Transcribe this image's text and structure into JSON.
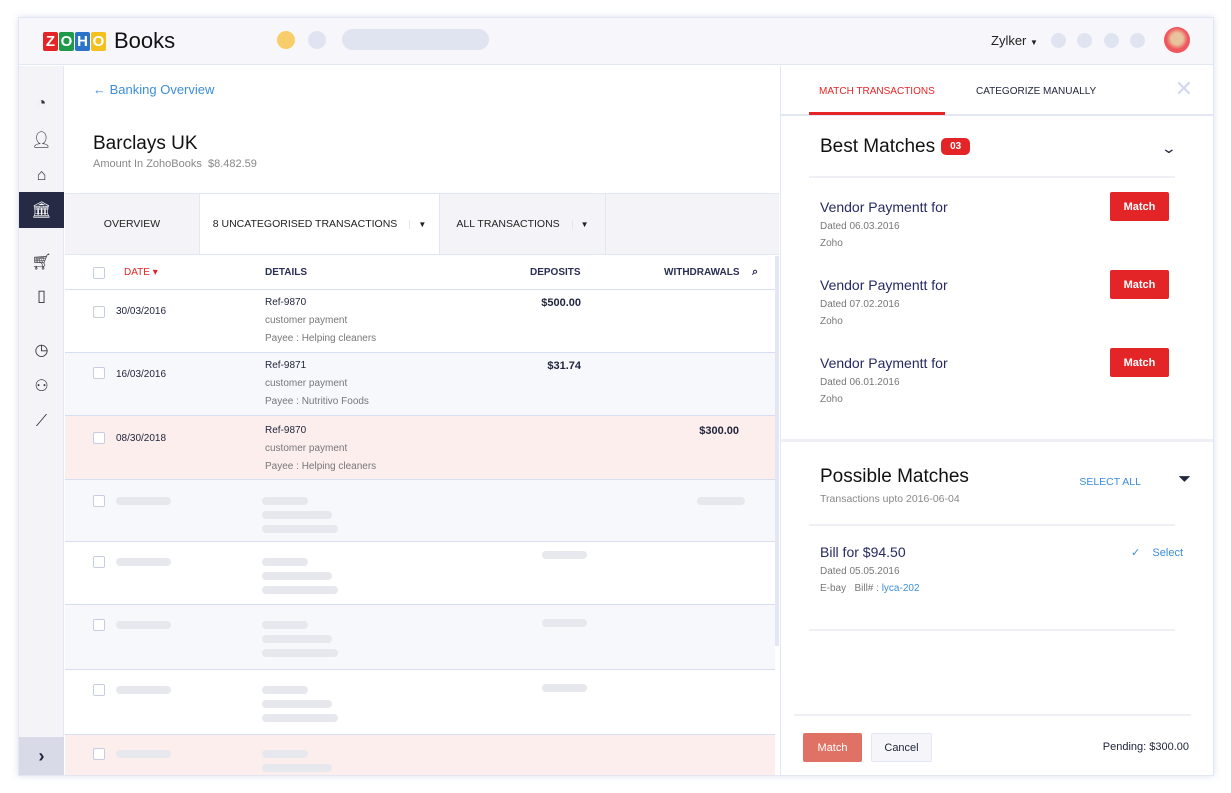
{
  "header": {
    "app_name": "Books",
    "logo_letters": [
      "Z",
      "O",
      "H",
      "O"
    ],
    "org": "Zylker"
  },
  "breadcrumb": "Banking Overview",
  "account": {
    "name": "Barclays UK",
    "amount_label": "Amount In ZohoBooks",
    "amount": "$8.482.59"
  },
  "tabs": [
    "OVERVIEW",
    "8 UNCATEGORISED TRANSACTIONS",
    "ALL TRANSACTIONS"
  ],
  "table": {
    "headers": {
      "date": "DATE",
      "details": "DETAILS",
      "deposits": "DEPOSITS",
      "withdrawals": "WITHDRAWALS"
    },
    "rows": [
      {
        "date": "30/03/2016",
        "ref": "Ref-9870",
        "desc": "customer payment",
        "payee": "Payee : Helping cleaners",
        "deposit": "$500.00",
        "withdrawal": ""
      },
      {
        "date": "16/03/2016",
        "ref": "Ref-9871",
        "desc": "customer payment",
        "payee": "Payee : Nutritivo Foods",
        "deposit": "$31.74",
        "withdrawal": ""
      },
      {
        "date": "08/30/2018",
        "ref": "Ref-9870",
        "desc": "customer payment",
        "payee": "Payee : Helping cleaners",
        "deposit": "",
        "withdrawal": "$300.00"
      }
    ]
  },
  "panel": {
    "tabs": [
      "MATCH TRANSACTIONS",
      "CATEGORIZE MANUALLY"
    ],
    "best_title": "Best Matches",
    "best_count": "03",
    "best": [
      {
        "title": "Vendor Paymentt for",
        "date": "Dated 06.03.2016",
        "vendor": "Zoho",
        "button": "Match"
      },
      {
        "title": "Vendor Paymentt for",
        "date": "Dated 07.02.2016",
        "vendor": "Zoho",
        "button": "Match"
      },
      {
        "title": "Vendor Paymentt for",
        "date": "Dated 06.01.2016",
        "vendor": "Zoho",
        "button": "Match"
      }
    ],
    "possible_title": "Possible Matches",
    "possible_sub": "Transactions upto 2016-06-04",
    "select_all": "SELECT ALL",
    "possible": [
      {
        "title": "Bill for $94.50",
        "date": "Dated 05.05.2016",
        "vendor": "E-bay",
        "bill_label": "Bill# :",
        "bill_no": "lyca-202",
        "select": "Select"
      }
    ],
    "footer": {
      "match": "Match",
      "cancel": "Cancel",
      "pending": "Pending: $300.00"
    }
  },
  "colors": {
    "accent": "#e42527",
    "link": "#3c8ed9",
    "nav_active": "#262a44"
  }
}
